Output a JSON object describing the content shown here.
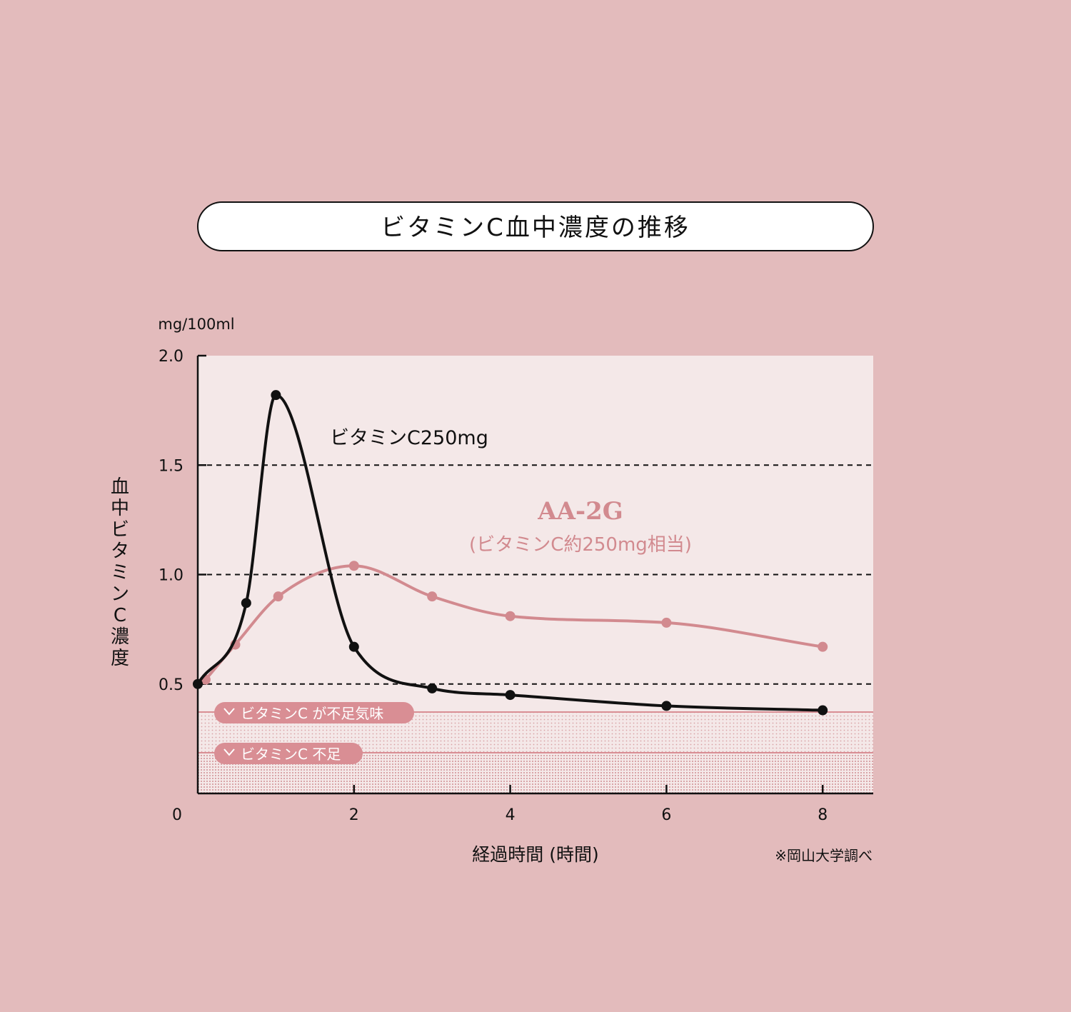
{
  "colors": {
    "background": "#e3bbbc",
    "plot_area": "#f4e8e8",
    "black_series": "#111111",
    "pink_series": "#d28a8f",
    "band": "#d98e94",
    "title_box": "#ffffff"
  },
  "chart_data": {
    "type": "line",
    "title": "ビタミンC血中濃度の推移",
    "xlabel": "経過時間 (時間)",
    "ylabel": "血中ビタミンC濃度",
    "y_unit": "mg/100ml",
    "xlim": [
      0,
      8.65
    ],
    "ylim": [
      0,
      2.0
    ],
    "x_ticks": [
      {
        "value": 0,
        "label": "0"
      },
      {
        "value": 2,
        "label": "2"
      },
      {
        "value": 4,
        "label": "4"
      },
      {
        "value": 6,
        "label": "6"
      },
      {
        "value": 8,
        "label": "8"
      }
    ],
    "y_ticks": [
      {
        "value": 0.5,
        "label": "0.5"
      },
      {
        "value": 1.0,
        "label": "1.0"
      },
      {
        "value": 1.5,
        "label": "1.5"
      },
      {
        "value": 2.0,
        "label": "2.0"
      }
    ],
    "grid": "dashed horizontal lines at 0.5, 1.0 and 1.5",
    "series": [
      {
        "name": "ビタミンC250mg",
        "color": "#111111",
        "points": [
          [
            0,
            0.5
          ],
          [
            0.62,
            0.87
          ],
          [
            1.0,
            1.82
          ],
          [
            2.0,
            0.67
          ],
          [
            3.0,
            0.48
          ],
          [
            4.0,
            0.45
          ],
          [
            6.0,
            0.4
          ],
          [
            8.0,
            0.38
          ]
        ]
      },
      {
        "name": "AA-2G",
        "subtitle": "(ビタミンC約250mg相当)",
        "color": "#d28a8f",
        "points": [
          [
            0.1,
            0.52
          ],
          [
            0.48,
            0.68
          ],
          [
            1.03,
            0.9
          ],
          [
            2.0,
            1.04
          ],
          [
            3.0,
            0.9
          ],
          [
            4.0,
            0.81
          ],
          [
            6.0,
            0.78
          ],
          [
            8.0,
            0.67
          ]
        ]
      }
    ],
    "bands": [
      {
        "label": "ビタミンC が不足気味",
        "from": 0.186,
        "to": 0.372
      },
      {
        "label": "ビタミンC 不足",
        "from": 0,
        "to": 0.186
      }
    ],
    "source_note": "※岡山大学調べ"
  }
}
